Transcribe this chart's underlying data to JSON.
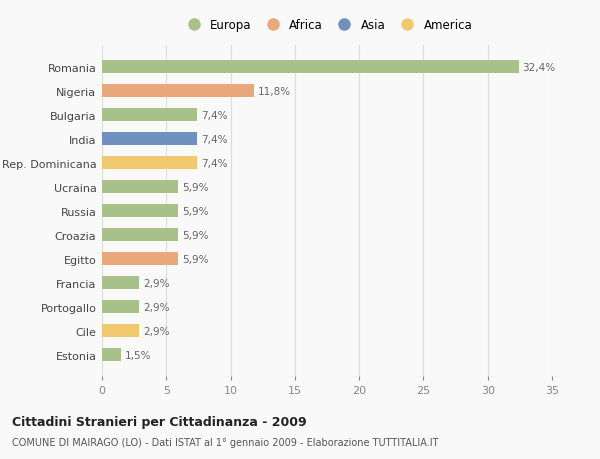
{
  "countries": [
    "Romania",
    "Nigeria",
    "Bulgaria",
    "India",
    "Rep. Dominicana",
    "Ucraina",
    "Russia",
    "Croazia",
    "Egitto",
    "Francia",
    "Portogallo",
    "Cile",
    "Estonia"
  ],
  "values": [
    32.4,
    11.8,
    7.4,
    7.4,
    7.4,
    5.9,
    5.9,
    5.9,
    5.9,
    2.9,
    2.9,
    2.9,
    1.5
  ],
  "labels": [
    "32,4%",
    "11,8%",
    "7,4%",
    "7,4%",
    "7,4%",
    "5,9%",
    "5,9%",
    "5,9%",
    "5,9%",
    "2,9%",
    "2,9%",
    "2,9%",
    "1,5%"
  ],
  "continents": [
    "Europa",
    "Africa",
    "Europa",
    "Asia",
    "America",
    "Europa",
    "Europa",
    "Europa",
    "Africa",
    "Europa",
    "Europa",
    "America",
    "Europa"
  ],
  "colors": {
    "Europa": "#a8c08a",
    "Africa": "#e8a87c",
    "Asia": "#7090c0",
    "America": "#f0c96e"
  },
  "legend_order": [
    "Europa",
    "Africa",
    "Asia",
    "America"
  ],
  "title": "Cittadini Stranieri per Cittadinanza - 2009",
  "subtitle": "COMUNE DI MAIRAGO (LO) - Dati ISTAT al 1° gennaio 2009 - Elaborazione TUTTITALIA.IT",
  "xlim": [
    0,
    35
  ],
  "xticks": [
    0,
    5,
    10,
    15,
    20,
    25,
    30,
    35
  ],
  "background_color": "#f9f9f9",
  "grid_color": "#dddddd"
}
